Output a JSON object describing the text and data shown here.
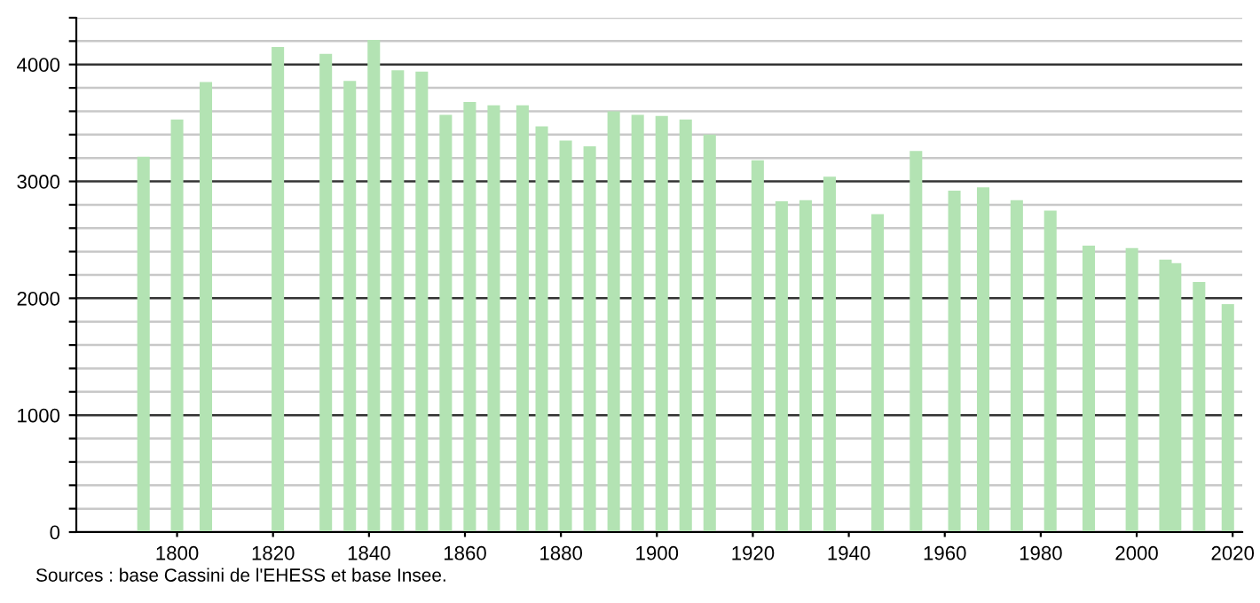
{
  "chart_data": {
    "type": "bar",
    "color": "#b3e3b3",
    "x": [
      1793,
      1800,
      1806,
      1821,
      1831,
      1836,
      1841,
      1846,
      1851,
      1856,
      1861,
      1866,
      1872,
      1876,
      1881,
      1886,
      1891,
      1896,
      1901,
      1906,
      1911,
      1921,
      1926,
      1931,
      1936,
      1946,
      1954,
      1962,
      1968,
      1975,
      1982,
      1990,
      1999,
      2006,
      2008,
      2013,
      2019
    ],
    "values": [
      3210,
      3530,
      3850,
      4150,
      4090,
      3860,
      4210,
      3950,
      3940,
      3570,
      3680,
      3650,
      3650,
      3470,
      3350,
      3300,
      3600,
      3570,
      3560,
      3530,
      3400,
      3180,
      2830,
      2840,
      3040,
      2720,
      3260,
      2920,
      2950,
      2840,
      2750,
      2450,
      2430,
      2330,
      2300,
      2140,
      1950
    ],
    "xlim": [
      1779,
      2022
    ],
    "xticks": [
      1800,
      1820,
      1840,
      1860,
      1880,
      1900,
      1920,
      1940,
      1960,
      1980,
      2000,
      2020
    ],
    "ylim": [
      0,
      4400
    ],
    "yticks": [
      0,
      {
        "value": 200,
        "label": null
      },
      {
        "value": 400,
        "label": null
      },
      {
        "value": 600,
        "label": null
      },
      {
        "value": 800,
        "label": null
      },
      1000,
      {
        "value": 1200,
        "label": null
      },
      {
        "value": 1400,
        "label": null
      },
      {
        "value": 1600,
        "label": null
      },
      {
        "value": 1800,
        "label": null
      },
      2000,
      {
        "value": 2200,
        "label": null
      },
      {
        "value": 2400,
        "label": null
      },
      {
        "value": 2600,
        "label": null
      },
      {
        "value": 2800,
        "label": null
      },
      3000,
      {
        "value": 3200,
        "label": null
      },
      {
        "value": 3400,
        "label": null
      },
      {
        "value": 3600,
        "label": null
      },
      {
        "value": 3800,
        "label": null
      },
      4000,
      {
        "value": 4200,
        "label": null
      },
      {
        "value": 4400,
        "label": null
      }
    ],
    "grid": "y",
    "annotations": [
      "Sources : base Cassini de l'EHESS et base Insee."
    ]
  }
}
